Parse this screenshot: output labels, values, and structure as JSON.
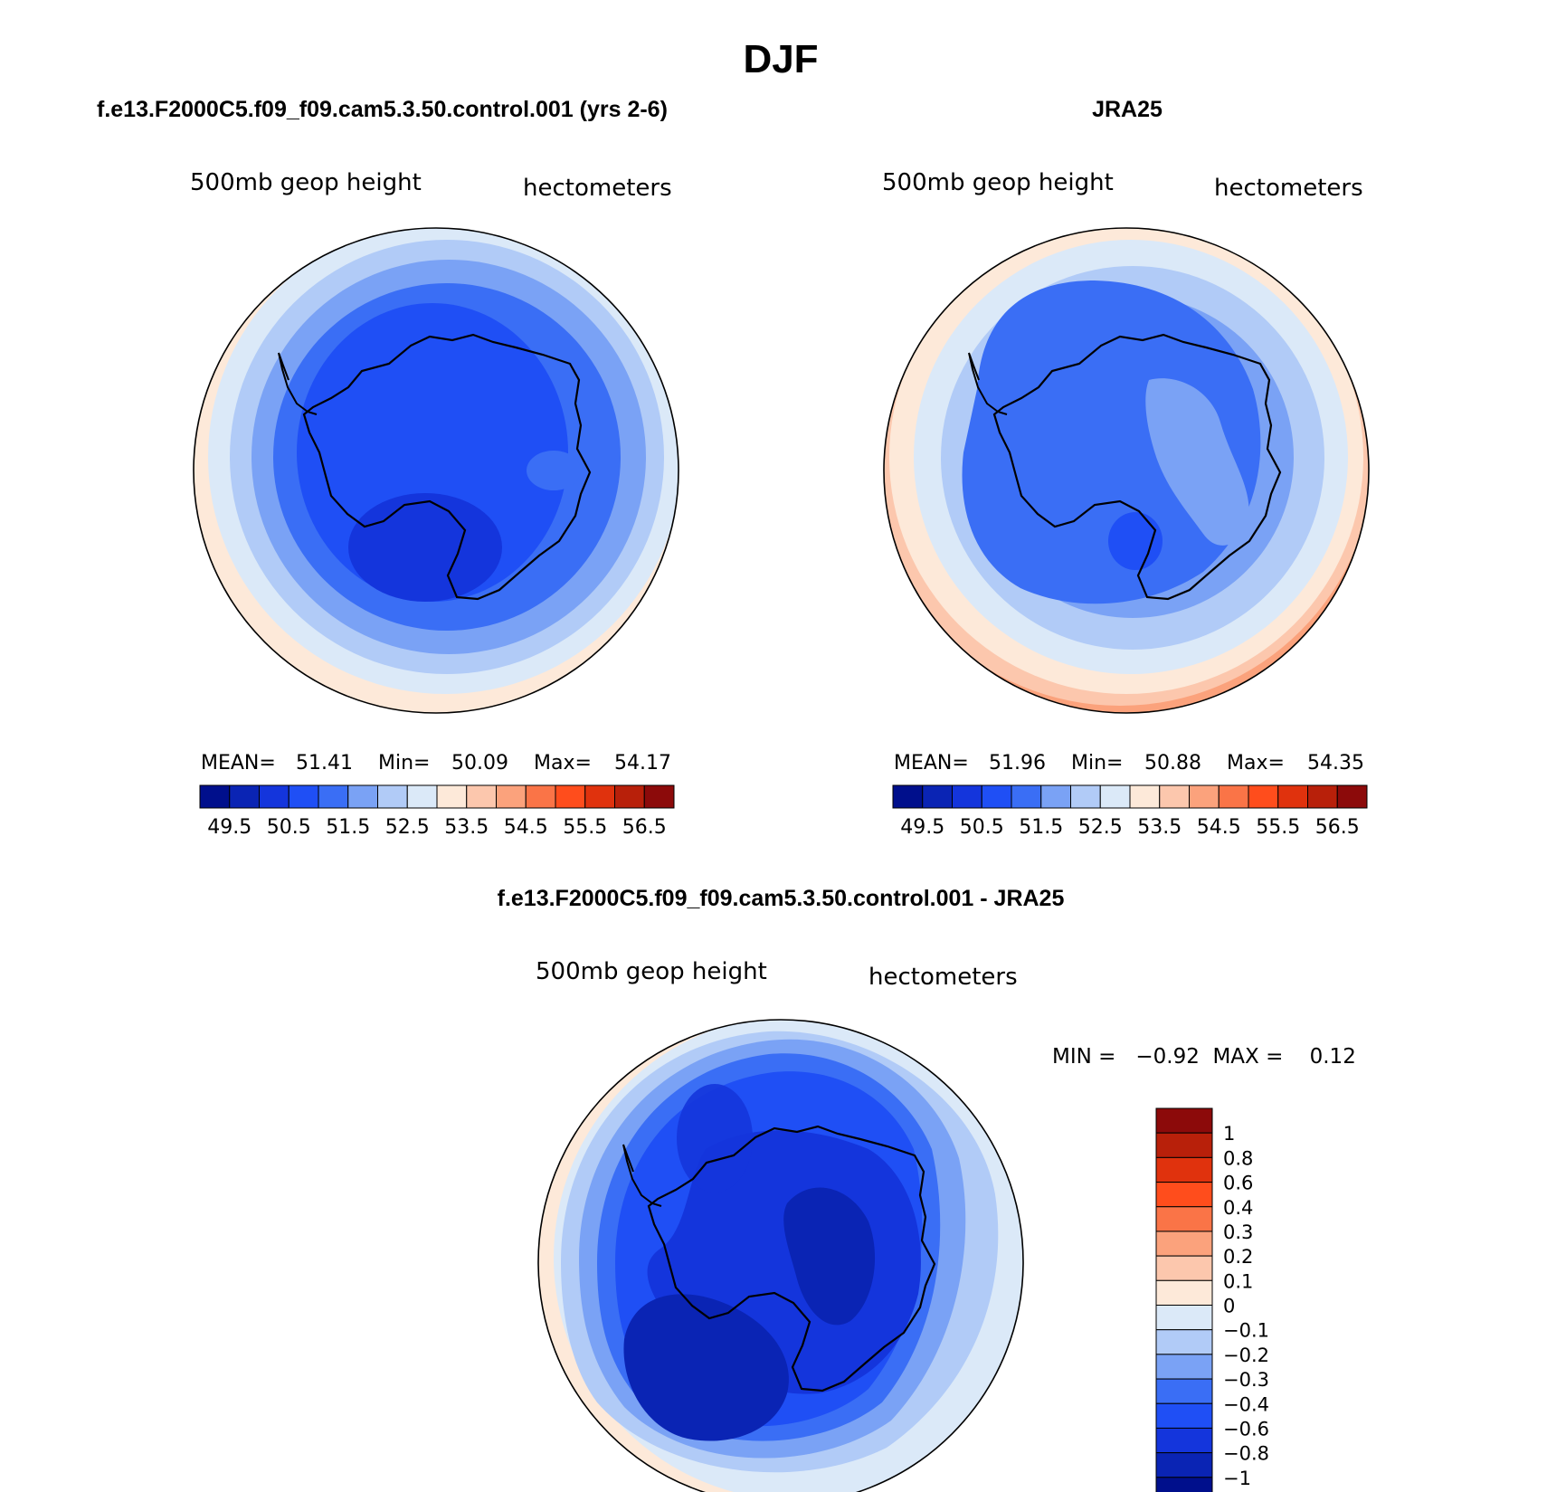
{
  "season_title": "DJF",
  "colors": {
    "ramp": [
      "#000f8c",
      "#0a24b4",
      "#1435dc",
      "#1f4ff5",
      "#3a6ef5",
      "#7aa2f5",
      "#b1cbf7",
      "#dbe9f8",
      "#fde9d9",
      "#fcc7ad",
      "#fba27c",
      "#fa7447",
      "#ff4d1c",
      "#e0320d",
      "#b8200a",
      "#8c0a0a"
    ],
    "outline": "#000000"
  },
  "panels": [
    {
      "header": "f.e13.F2000C5.f09_f09.cam5.3.50.control.001 (yrs 2-6)",
      "variable": "500mb geop height",
      "units": "hectometers",
      "stats": {
        "mean_label": "MEAN=",
        "mean": "51.41",
        "min_label": "Min=",
        "min": "50.09",
        "max_label": "Max=",
        "max": "54.17"
      }
    },
    {
      "header": "JRA25",
      "variable": "500mb geop height",
      "units": "hectometers",
      "stats": {
        "mean_label": "MEAN=",
        "mean": "51.96",
        "min_label": "Min=",
        "min": "50.88",
        "max_label": "Max=",
        "max": "54.35"
      }
    }
  ],
  "diff_panel": {
    "header": "f.e13.F2000C5.f09_f09.cam5.3.50.control.001 - JRA25",
    "variable": "500mb geop height",
    "units": "hectometers",
    "range_text": "MIN =   −0.92  MAX =    0.12"
  },
  "chart_data": [
    {
      "type": "heatmap",
      "title": "f.e13.F2000C5.f09_f09.cam5.3.50.control.001 (yrs 2-6)",
      "projection": "south-polar stereographic",
      "quantity": "500mb geop height (hectometers)",
      "mean": 51.41,
      "min": 50.09,
      "max": 54.17,
      "colorbar_levels": [
        49.5,
        50,
        50.5,
        51,
        51.5,
        52,
        52.5,
        53,
        53.5,
        54,
        54.5,
        55,
        55.5,
        56,
        56.5
      ],
      "colorbar_tick_labels": [
        "49.5",
        "50.5",
        "51.5",
        "52.5",
        "53.5",
        "54.5",
        "55.5",
        "56.5"
      ],
      "rings": [
        {
          "level": 53.5,
          "color_index": 8
        },
        {
          "level": 53.0,
          "color_index": 7
        },
        {
          "level": 52.5,
          "color_index": 6
        },
        {
          "level": 52.0,
          "color_index": 5
        },
        {
          "level": 51.5,
          "color_index": 4
        },
        {
          "level": 51.0,
          "color_index": 3
        }
      ],
      "low_center": {
        "level": 50.5,
        "color_index": 2
      }
    },
    {
      "type": "heatmap",
      "title": "JRA25",
      "projection": "south-polar stereographic",
      "quantity": "500mb geop height (hectometers)",
      "mean": 51.96,
      "min": 50.88,
      "max": 54.35,
      "colorbar_levels": [
        49.5,
        50,
        50.5,
        51,
        51.5,
        52,
        52.5,
        53,
        53.5,
        54,
        54.5,
        55,
        55.5,
        56,
        56.5
      ],
      "colorbar_tick_labels": [
        "49.5",
        "50.5",
        "51.5",
        "52.5",
        "53.5",
        "54.5",
        "55.5",
        "56.5"
      ],
      "rings": [
        {
          "level": 54.0,
          "color_index": 9
        },
        {
          "level": 53.5,
          "color_index": 8
        },
        {
          "level": 53.0,
          "color_index": 7
        },
        {
          "level": 52.5,
          "color_index": 6
        },
        {
          "level": 52.0,
          "color_index": 5
        },
        {
          "level": 51.5,
          "color_index": 4
        }
      ],
      "high_center": {
        "level": 52.0,
        "color_index": 5
      }
    },
    {
      "type": "heatmap",
      "title": "f.e13.F2000C5.f09_f09.cam5.3.50.control.001 - JRA25",
      "projection": "south-polar stereographic",
      "quantity": "500mb geop height difference (hectometers)",
      "min": -0.92,
      "max": 0.12,
      "colorbar_levels": [
        -1,
        -0.8,
        -0.6,
        -0.4,
        -0.3,
        -0.2,
        -0.1,
        0,
        0.1,
        0.2,
        0.3,
        0.4,
        0.6,
        0.8,
        1
      ],
      "colorbar_tick_labels": [
        "1",
        "0.8",
        "0.6",
        "0.4",
        "0.3",
        "0.2",
        "0.1",
        "0",
        "−0.1",
        "−0.2",
        "−0.3",
        "−0.4",
        "−0.6",
        "−0.8",
        "−1"
      ],
      "colorbar_orientation": "vertical"
    }
  ]
}
